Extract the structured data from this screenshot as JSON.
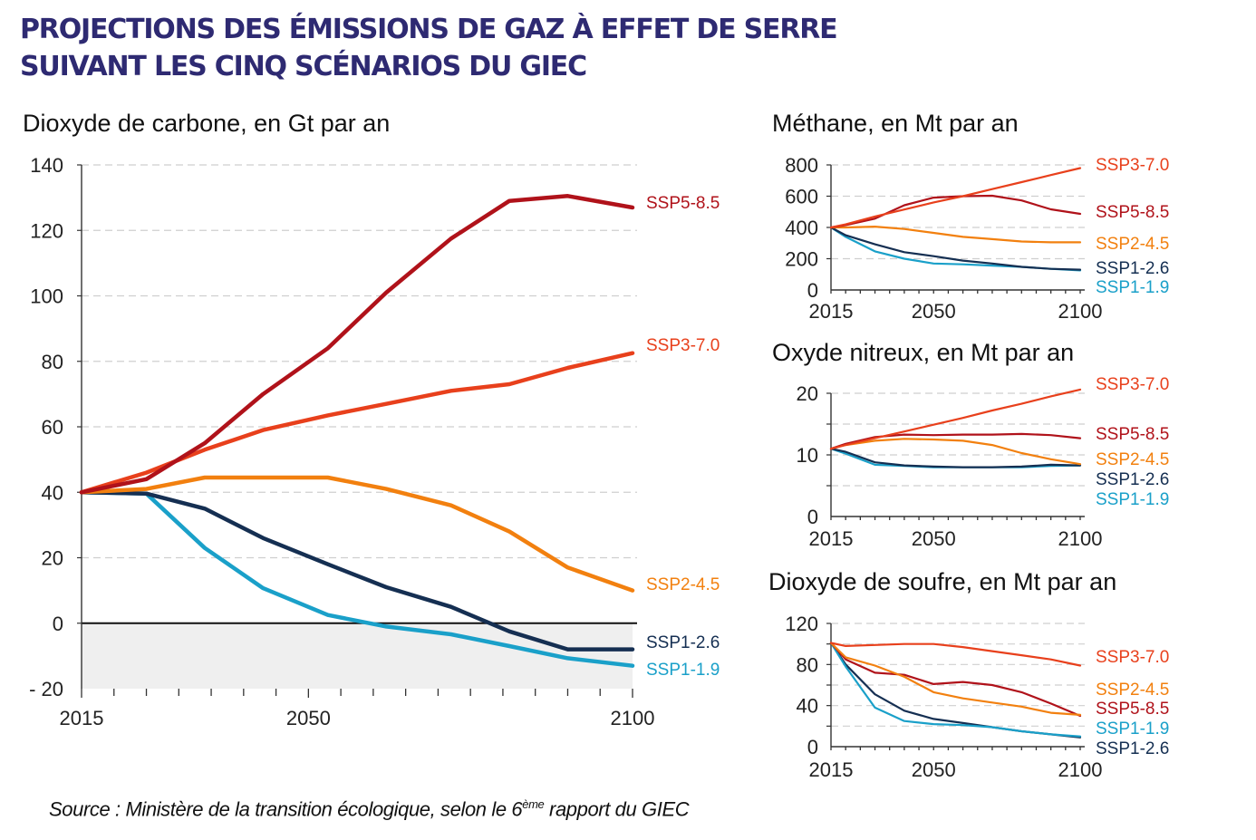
{
  "title_line1": "PROJECTIONS DES ÉMISSIONS DE GAZ À EFFET DE SERRE",
  "title_line2": "SUIVANT LES CINQ SCÉNARIOS DU GIEC",
  "source_prefix": "Source : Ministère de la transition écologique, selon le 6",
  "source_sup": "ème",
  "source_suffix": " rapport du GIEC",
  "colors": {
    "SSP5-8.5": "#b0121a",
    "SSP3-7.0": "#e8401c",
    "SSP2-4.5": "#f2800f",
    "SSP1-2.6": "#152f52",
    "SSP1-1.9": "#1aa0c9",
    "title": "#2e2a72"
  },
  "chart_data": [
    {
      "type": "line",
      "title": "Dioxyde de carbone, en Gt par an",
      "xlim": [
        2015,
        2100
      ],
      "ylim": [
        -20,
        140
      ],
      "xticks": [
        "2015",
        "2050",
        "2100"
      ],
      "yticks": [
        "140",
        "120",
        "100",
        "80",
        "60",
        "40",
        "20",
        "0",
        "- 20"
      ],
      "grid": true,
      "legend": "right, at line ends",
      "x": [
        2015,
        2025,
        2034,
        2043,
        2053,
        2062,
        2072,
        2081,
        2090,
        2100
      ],
      "series": [
        {
          "name": "SSP5-8.5",
          "values": [
            40,
            44,
            55,
            70,
            84,
            101,
            117.5,
            129,
            130.5,
            127
          ]
        },
        {
          "name": "SSP3-7.0",
          "values": [
            40,
            46,
            53,
            59,
            63.5,
            67,
            71,
            73,
            78,
            82.5
          ]
        },
        {
          "name": "SSP2-4.5",
          "values": [
            40,
            41,
            44.5,
            44.5,
            44.5,
            41,
            36,
            28,
            17,
            10
          ]
        },
        {
          "name": "SSP1-2.6",
          "values": [
            40,
            39.6,
            35,
            26,
            18,
            11,
            5,
            -2.5,
            -8,
            -8
          ]
        },
        {
          "name": "SSP1-1.9",
          "values": [
            40,
            39.6,
            23,
            10.7,
            2.5,
            -1,
            -3.4,
            -7,
            -10.7,
            -13
          ]
        }
      ]
    },
    {
      "type": "line",
      "title": "Méthane, en Mt par an",
      "xlim": [
        2015,
        2100
      ],
      "ylim": [
        0,
        800
      ],
      "xticks": [
        "2015",
        "2050",
        "2100"
      ],
      "yticks": [
        "800",
        "600",
        "400",
        "200",
        "0"
      ],
      "grid": true,
      "legend": "right",
      "x": [
        2015,
        2020,
        2030,
        2040,
        2050,
        2060,
        2070,
        2080,
        2090,
        2100
      ],
      "series": [
        {
          "name": "SSP3-7.0",
          "values": [
            400,
            420,
            470,
            515,
            560,
            600,
            645,
            690,
            735,
            780
          ]
        },
        {
          "name": "SSP5-8.5",
          "values": [
            400,
            415,
            456,
            542,
            591,
            600,
            603,
            573,
            516,
            487
          ]
        },
        {
          "name": "SSP2-4.5",
          "values": [
            400,
            400,
            405,
            390,
            365,
            340,
            325,
            310,
            305,
            305
          ]
        },
        {
          "name": "SSP1-2.6",
          "values": [
            400,
            350,
            292,
            242,
            216,
            188,
            169,
            148,
            135,
            130
          ]
        },
        {
          "name": "SSP1-1.9",
          "values": [
            400,
            340,
            247,
            200,
            169,
            164,
            156,
            148,
            135,
            125
          ]
        }
      ]
    },
    {
      "type": "line",
      "title": "Oxyde nitreux, en Mt par an",
      "xlim": [
        2015,
        2100
      ],
      "ylim": [
        0,
        20
      ],
      "xticks": [
        "2015",
        "2050",
        "2100"
      ],
      "yticks": [
        "20",
        "10",
        "0"
      ],
      "grid": true,
      "legend": "right",
      "x": [
        2015,
        2020,
        2030,
        2040,
        2050,
        2060,
        2070,
        2080,
        2090,
        2100
      ],
      "series": [
        {
          "name": "SSP3-7.0",
          "values": [
            11,
            11.6,
            12.7,
            13.8,
            14.9,
            16.0,
            17.2,
            18.3,
            19.5,
            20.6
          ]
        },
        {
          "name": "SSP5-8.5",
          "values": [
            11,
            11.8,
            12.9,
            13.3,
            13.2,
            13.3,
            13.3,
            13.4,
            13.2,
            12.7
          ]
        },
        {
          "name": "SSP2-4.5",
          "values": [
            11,
            11.6,
            12.3,
            12.6,
            12.5,
            12.3,
            11.6,
            10.3,
            9.3,
            8.5
          ]
        },
        {
          "name": "SSP1-2.6",
          "values": [
            11,
            10.5,
            8.8,
            8.3,
            8.1,
            8.0,
            8.0,
            8.1,
            8.4,
            8.3
          ]
        },
        {
          "name": "SSP1-1.9",
          "values": [
            11,
            10.2,
            8.4,
            8.2,
            8.0,
            8.0,
            8.0,
            8.0,
            8.2,
            8.3
          ]
        }
      ]
    },
    {
      "type": "line",
      "title": "Dioxyde de soufre, en Mt par an",
      "xlim": [
        2015,
        2100
      ],
      "ylim": [
        0,
        120
      ],
      "xticks": [
        "2015",
        "2050",
        "2100"
      ],
      "yticks": [
        "120",
        "80",
        "40",
        "0"
      ],
      "grid": true,
      "legend": "right",
      "x": [
        2015,
        2020,
        2030,
        2040,
        2050,
        2060,
        2070,
        2080,
        2090,
        2100
      ],
      "series": [
        {
          "name": "SSP3-7.0",
          "values": [
            101,
            98,
            99,
            100,
            100,
            97,
            93,
            89,
            85,
            79
          ]
        },
        {
          "name": "SSP2-4.5",
          "values": [
            101,
            87,
            79,
            68,
            53,
            47,
            43,
            39,
            33,
            31
          ]
        },
        {
          "name": "SSP5-8.5",
          "values": [
            101,
            85,
            72,
            70,
            61,
            63,
            60,
            53,
            42,
            30
          ]
        },
        {
          "name": "SSP1-1.9",
          "values": [
            101,
            78,
            38,
            25,
            22,
            21,
            19,
            15,
            12,
            10
          ]
        },
        {
          "name": "SSP1-2.6",
          "values": [
            101,
            80,
            51,
            35,
            27,
            23,
            19,
            15,
            12,
            9
          ]
        }
      ]
    }
  ]
}
